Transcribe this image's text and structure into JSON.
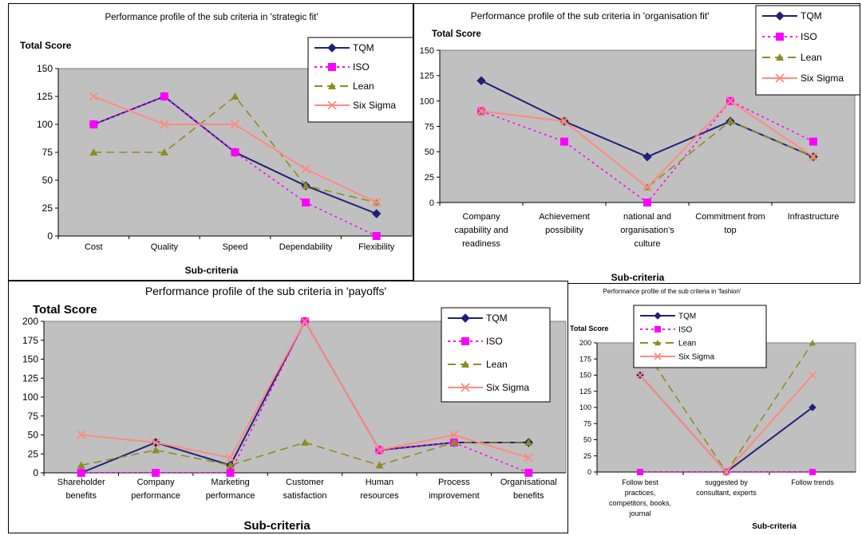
{
  "series_style": [
    {
      "name": "TQM",
      "color": "#1f1f7a",
      "marker": "diamond",
      "dash": ""
    },
    {
      "name": "ISO",
      "color": "#ff00ff",
      "marker": "square",
      "dash": "3,4"
    },
    {
      "name": "Lean",
      "color": "#8c8c21",
      "marker": "triangle",
      "dash": "10,6"
    },
    {
      "name": "Six Sigma",
      "color": "#ff8a80",
      "marker": "x",
      "dash": ""
    }
  ],
  "chart_data": [
    {
      "type": "line",
      "title": "Performance profile of the sub criteria in 'strategic fit'",
      "ylabel": "Total Score",
      "xlabel": "Sub-criteria",
      "ylim": [
        0,
        150
      ],
      "yticks": [
        0,
        25,
        50,
        75,
        100,
        125,
        150
      ],
      "categories": [
        [
          "Cost"
        ],
        [
          "Quality"
        ],
        [
          "Speed"
        ],
        [
          "Dependability"
        ],
        [
          "Flexibility"
        ]
      ],
      "series": [
        {
          "name": "TQM",
          "values": [
            100,
            125,
            75,
            45,
            20
          ]
        },
        {
          "name": "ISO",
          "values": [
            100,
            125,
            75,
            30,
            0
          ]
        },
        {
          "name": "Lean",
          "values": [
            75,
            75,
            125,
            45,
            30
          ]
        },
        {
          "name": "Six Sigma",
          "values": [
            125,
            100,
            100,
            60,
            30
          ]
        }
      ],
      "legend": "top-right",
      "grid": false
    },
    {
      "type": "line",
      "title": "Performance profile of the sub criteria in 'organisation fit'",
      "ylabel": "Total Score",
      "xlabel": "Sub-criteria",
      "ylim": [
        0,
        150
      ],
      "yticks": [
        0,
        25,
        50,
        75,
        100,
        125,
        150
      ],
      "categories": [
        [
          "Company",
          "capability and",
          "readiness"
        ],
        [
          "Achievement",
          "possibility"
        ],
        [
          "national and",
          "organisation's",
          "culture"
        ],
        [
          "Commitment from",
          "top"
        ],
        [
          "Infrastructure"
        ]
      ],
      "series": [
        {
          "name": "TQM",
          "values": [
            120,
            80,
            45,
            80,
            45
          ]
        },
        {
          "name": "ISO",
          "values": [
            90,
            60,
            0,
            100,
            60
          ]
        },
        {
          "name": "Lean",
          "values": [
            90,
            80,
            15,
            80,
            45
          ]
        },
        {
          "name": "Six Sigma",
          "values": [
            90,
            80,
            15,
            100,
            45
          ]
        }
      ],
      "legend": "top-right",
      "grid": false
    },
    {
      "type": "line",
      "title": "Performance profile of the sub criteria in 'payoffs'",
      "ylabel": "Total Score",
      "xlabel": "Sub-criteria",
      "ylim": [
        0,
        200
      ],
      "yticks": [
        0,
        25,
        50,
        75,
        100,
        125,
        150,
        175,
        200
      ],
      "categories": [
        [
          "Shareholder",
          "benefits"
        ],
        [
          "Company",
          "performance"
        ],
        [
          "Marketing",
          "performance"
        ],
        [
          "Customer",
          "satisfaction"
        ],
        [
          "Human",
          "resources"
        ],
        [
          "Process",
          "improvement"
        ],
        [
          "Organisational",
          "benefits"
        ]
      ],
      "series": [
        {
          "name": "TQM",
          "values": [
            0,
            40,
            10,
            200,
            30,
            40,
            40
          ]
        },
        {
          "name": "ISO",
          "values": [
            0,
            0,
            0,
            200,
            30,
            40,
            0
          ]
        },
        {
          "name": "Lean",
          "values": [
            10,
            30,
            10,
            40,
            10,
            40,
            40
          ]
        },
        {
          "name": "Six Sigma",
          "values": [
            50,
            40,
            20,
            200,
            30,
            50,
            20
          ]
        }
      ],
      "legend": "top-right",
      "grid": false
    },
    {
      "type": "line",
      "title": "Performance profile of the sub criteria in 'fashion'",
      "ylabel": "Total Score",
      "xlabel": "Sub-criteria",
      "ylim": [
        0,
        200
      ],
      "yticks": [
        0,
        25,
        50,
        75,
        100,
        125,
        150,
        175,
        200
      ],
      "categories": [
        [
          "Follow best",
          "practices,",
          "competitors, books,",
          "journal"
        ],
        [
          "suggested by",
          "consultant, experts"
        ],
        [
          "Follow trends"
        ]
      ],
      "series": [
        {
          "name": "TQM",
          "values": [
            150,
            0,
            100
          ]
        },
        {
          "name": "ISO",
          "values": [
            0,
            0,
            0
          ]
        },
        {
          "name": "Lean",
          "values": [
            200,
            0,
            200
          ]
        },
        {
          "name": "Six Sigma",
          "values": [
            150,
            0,
            150
          ]
        }
      ],
      "legend": "top-right",
      "grid": false
    }
  ]
}
